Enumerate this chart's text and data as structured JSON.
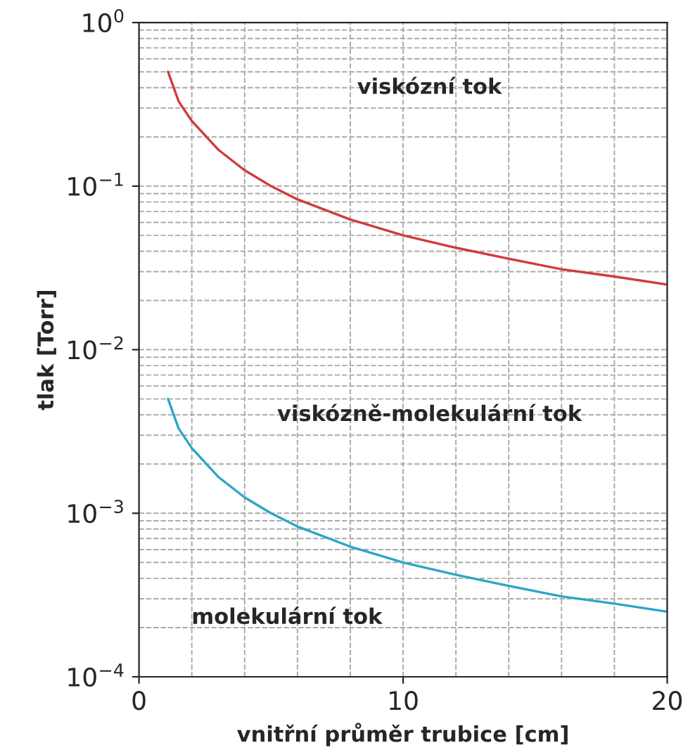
{
  "chart_data": {
    "type": "line",
    "xlabel": "vnitřní průměr trubice [cm]",
    "ylabel": "tlak [Torr]",
    "log": "y",
    "xlim": [
      0,
      20
    ],
    "xticks": [
      0,
      10,
      20
    ],
    "ylim": [
      0.0001,
      1
    ],
    "yticks": [
      {
        "value": 0.0001,
        "label": "10$^{−4}$"
      },
      {
        "value": 0.001,
        "label": "10$^{−3}$"
      },
      {
        "value": 0.01,
        "label": "10$^{−2}$"
      },
      {
        "value": 0.1,
        "label": "10$^{−1}$"
      },
      {
        "value": 1,
        "label": "10$^{0}$"
      }
    ],
    "grid": true,
    "line_style": "solid",
    "series": [
      {
        "color": "#d03a3e",
        "x": [
          1.1,
          1.5,
          2,
          3,
          4,
          5,
          6,
          8,
          10,
          12,
          14,
          16,
          18,
          20
        ],
        "values": [
          0.5,
          0.33,
          0.25,
          0.167,
          0.125,
          0.1,
          0.083,
          0.0625,
          0.05,
          0.042,
          0.036,
          0.031,
          0.028,
          0.025
        ]
      },
      {
        "color": "#2aa6c6",
        "x": [
          1.1,
          1.5,
          2,
          3,
          4,
          5,
          6,
          8,
          10,
          12,
          14,
          16,
          18,
          20
        ],
        "values": [
          0.005,
          0.0033,
          0.0025,
          0.00167,
          0.00125,
          0.001,
          0.00083,
          0.000625,
          0.0005,
          0.00042,
          0.00036,
          0.00031,
          0.00028,
          0.00025
        ]
      }
    ],
    "annotations": [
      "viskózní tok",
      "viskózně-molekulární tok",
      "molekulární tok"
    ]
  }
}
